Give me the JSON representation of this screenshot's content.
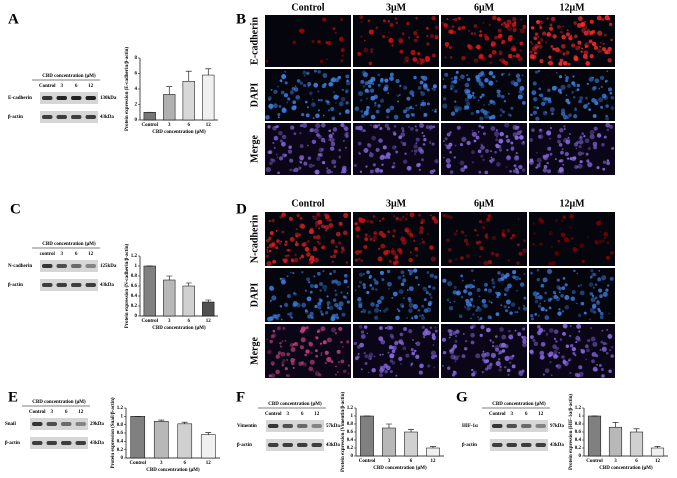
{
  "panel_labels": [
    "A",
    "B",
    "C",
    "D",
    "E",
    "F",
    "G"
  ],
  "blots": [
    {
      "title": "CBD concentration (μM)",
      "lanes": [
        "Control",
        "3",
        "6",
        "12"
      ],
      "rows": [
        {
          "protein": "E-cadherin",
          "size": "130kDa"
        },
        {
          "protein": "β-actin",
          "size": "43kDa"
        }
      ]
    },
    {
      "title": "CBD concentration (μM)",
      "lanes": [
        "control",
        "3",
        "6",
        "12"
      ],
      "rows": [
        {
          "protein": "N-cadherin",
          "size": "125kDa"
        },
        {
          "protein": "β-actin",
          "size": "43kDa"
        }
      ]
    },
    {
      "title": "CBD concentration (μM)",
      "lanes": [
        "Control",
        "3",
        "6",
        "12"
      ],
      "rows": [
        {
          "protein": "Snail",
          "size": "29kDa"
        },
        {
          "protein": "β-actin",
          "size": "43kDa"
        }
      ]
    },
    {
      "title": "CBD concentration (μM)",
      "lanes": [
        "Control",
        "3",
        "6",
        "12"
      ],
      "rows": [
        {
          "protein": "Vimentin",
          "size": "57kDa"
        },
        {
          "protein": "β-actin",
          "size": "43kDa"
        }
      ]
    },
    {
      "title": "CBD concentration (μM)",
      "lanes": [
        "Control",
        "3",
        "6",
        "12"
      ],
      "rows": [
        {
          "protein": "HIF-1α",
          "size": "97kDa"
        },
        {
          "protein": "β-actin",
          "size": "43kDa"
        }
      ]
    }
  ],
  "micrographs": [
    {
      "columns": [
        "Control",
        "3μM",
        "6μM",
        "12μM"
      ],
      "rows": [
        "E-cadherin",
        "DAPI",
        "Merge"
      ]
    },
    {
      "columns": [
        "Control",
        "3μM",
        "6μM",
        "12μM"
      ],
      "rows": [
        "N-cadherin",
        "DAPI",
        "Merge"
      ]
    }
  ],
  "chart_data": [
    {
      "type": "bar",
      "categories": [
        "Control",
        "3",
        "6",
        "12"
      ],
      "values": [
        1,
        3.3,
        5,
        5.8
      ],
      "errors": [
        0,
        1.0,
        1.3,
        0.8
      ],
      "ylim": [
        0,
        8
      ],
      "yticks": [
        0,
        2,
        4,
        6,
        8
      ],
      "y_label": "Protein expression (E-cadherin/β-actin)",
      "x_label": "CBD concentration (μM)",
      "bar_colors": [
        "#777777",
        "#b0b0b0",
        "#d8d8d8",
        "#f0f0f0"
      ]
    },
    {
      "type": "bar",
      "categories": [
        "Control",
        "3",
        "6",
        "12"
      ],
      "values": [
        1,
        0.72,
        0.6,
        0.28
      ],
      "errors": [
        0,
        0.08,
        0.06,
        0.04
      ],
      "ylim": [
        0,
        1.2
      ],
      "yticks": [
        0,
        0.2,
        0.4,
        0.6,
        0.8,
        1,
        1.2
      ],
      "y_label": "Protein expression (N-cadherin/β-actin)",
      "x_label": "CBD concentration (μM)",
      "bar_colors": [
        "#808080",
        "#b8b8b8",
        "#d0d0d0",
        "#505050"
      ]
    },
    {
      "type": "bar",
      "categories": [
        "Control",
        "3",
        "6",
        "12"
      ],
      "values": [
        1,
        0.88,
        0.82,
        0.56
      ],
      "errors": [
        0,
        0.03,
        0.04,
        0.05
      ],
      "ylim": [
        0,
        1.2
      ],
      "yticks": [
        0,
        0.2,
        0.4,
        0.6,
        0.8,
        1,
        1.2
      ],
      "y_label": "Protein expression (Snail/β-actin)",
      "x_label": "CBD concentration (μM)",
      "bar_colors": [
        "#808080",
        "#b8b8b8",
        "#d0d0d0",
        "#f0f0f0"
      ]
    },
    {
      "type": "bar",
      "categories": [
        "Control",
        "3",
        "6",
        "12"
      ],
      "values": [
        1,
        0.7,
        0.6,
        0.2
      ],
      "errors": [
        0,
        0.1,
        0.06,
        0.04
      ],
      "ylim": [
        0,
        1.2
      ],
      "yticks": [
        0,
        0.2,
        0.4,
        0.6,
        0.8,
        1,
        1.2
      ],
      "y_label": "Protein expression (Vimentin/β-actin)",
      "x_label": "CBD concentration (μM)",
      "bar_colors": [
        "#808080",
        "#b8b8b8",
        "#d0d0d0",
        "#f0f0f0"
      ]
    },
    {
      "type": "bar",
      "categories": [
        "Control",
        "3",
        "6",
        "12"
      ],
      "values": [
        1,
        0.72,
        0.6,
        0.2
      ],
      "errors": [
        0,
        0.12,
        0.08,
        0.04
      ],
      "ylim": [
        0,
        1.2
      ],
      "yticks": [
        0,
        0.2,
        0.4,
        0.6,
        0.8,
        1,
        1.2
      ],
      "y_label": "Protein expression (HIF-1α/β-actin)",
      "x_label": "CBD concentration (μM)",
      "bar_colors": [
        "#808080",
        "#b8b8b8",
        "#d0d0d0",
        "#f0f0f0"
      ]
    }
  ]
}
